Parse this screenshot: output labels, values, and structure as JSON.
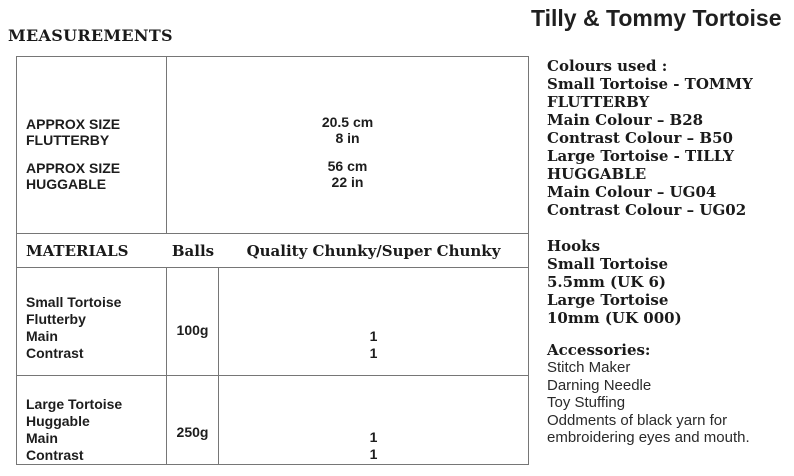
{
  "document": {
    "measurements_heading": "MEASUREMENTS",
    "title": "Tilly & Tommy Tortoise"
  },
  "size_table": {
    "rows": [
      {
        "label_line1": "APPROX SIZE",
        "label_line2": "FLUTTERBY",
        "value_line1": "20.5 cm",
        "value_line2": "8 in"
      },
      {
        "label_line1": "APPROX SIZE",
        "label_line2": "HUGGABLE",
        "value_line1": "56 cm",
        "value_line2": "22 in"
      }
    ]
  },
  "materials_table": {
    "headers": [
      "MATERIALS",
      "Balls",
      "Quality Chunky/Super Chunky"
    ],
    "rows": [
      {
        "line1": "Small Tortoise",
        "line2": "Flutterby",
        "line3": "Main",
        "line4": "Contrast",
        "weight": "100g",
        "qty1": "1",
        "qty2": "1"
      },
      {
        "line1": "Large Tortoise",
        "line2": "Huggable",
        "line3": "Main",
        "line4": "Contrast",
        "weight": "250g",
        "qty1": "1",
        "qty2": "1"
      }
    ]
  },
  "right_panel": {
    "colours": {
      "heading": "Colours used :",
      "lines": [
        "Small Tortoise - TOMMY",
        "FLUTTERBY",
        "Main Colour – B28",
        "Contrast Colour – B50",
        "Large Tortoise - TILLY",
        "HUGGABLE",
        "Main Colour – UG04",
        "Contrast Colour – UG02"
      ]
    },
    "hooks": {
      "heading": "Hooks",
      "lines": [
        "Small Tortoise",
        "5.5mm (UK 6)",
        "Large Tortoise",
        "10mm (UK 000)"
      ]
    },
    "accessories": {
      "heading": "Accessories:",
      "lines": [
        "Stitch Maker",
        "Darning Needle",
        "Toy Stuffing",
        "Oddments of black yarn for embroidering eyes and mouth."
      ]
    }
  },
  "colors": {
    "text": "#1d1d1d",
    "border": "#767676",
    "background": "#ffffff"
  }
}
